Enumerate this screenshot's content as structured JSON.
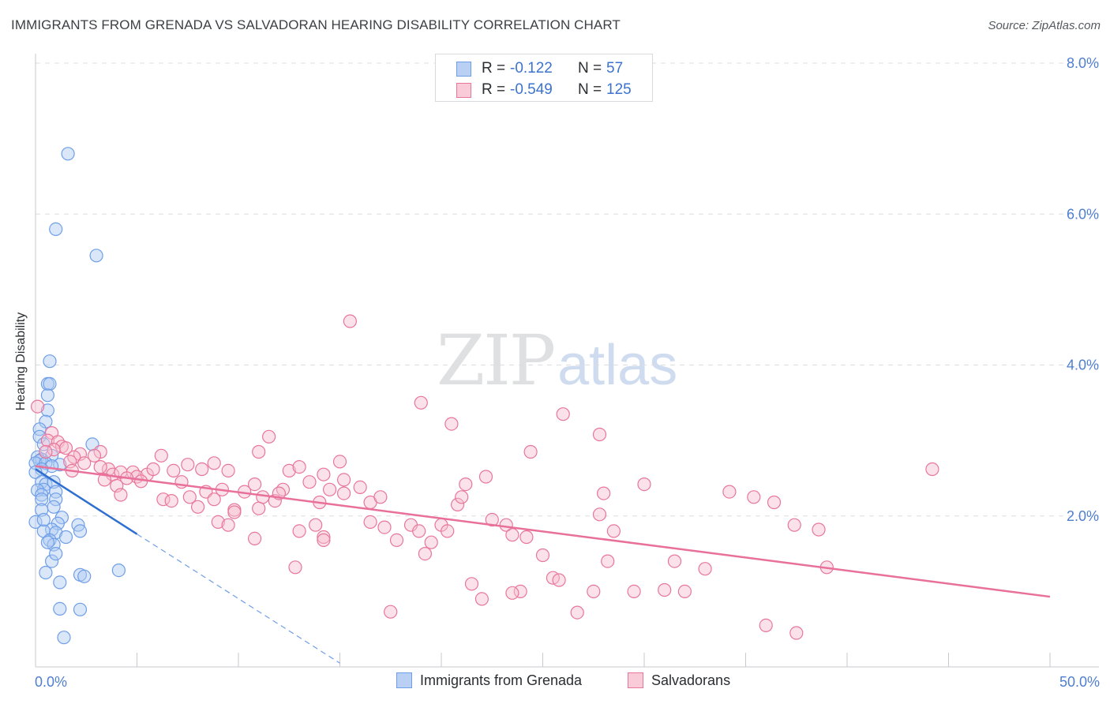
{
  "title": "IMMIGRANTS FROM GRENADA VS SALVADORAN HEARING DISABILITY CORRELATION CHART",
  "source": "Source: ZipAtlas.com",
  "watermark": {
    "zip": "ZIP",
    "atlas": "atlas"
  },
  "legend_top": {
    "r_label": "R =",
    "n_label": "N =",
    "rows": [
      {
        "name": "Immigrants from Grenada",
        "r": "-0.122",
        "n": "57"
      },
      {
        "name": "Salvadorans",
        "r": "-0.549",
        "n": "125"
      }
    ]
  },
  "legend_bottom": [
    "Immigrants from Grenada",
    "Salvadorans"
  ],
  "chart_data": {
    "type": "scatter",
    "title": "IMMIGRANTS FROM GRENADA VS SALVADORAN HEARING DISABILITY CORRELATION CHART",
    "xlabel": "",
    "ylabel": "Hearing Disability",
    "xlim": [
      0,
      50
    ],
    "ylim": [
      0,
      8
    ],
    "x_tick_labels": [
      "0.0%",
      "50.0%"
    ],
    "y_ticks": [
      2,
      4,
      6,
      8
    ],
    "y_tick_labels": [
      "2.0%",
      "4.0%",
      "6.0%",
      "8.0%"
    ],
    "grid": true,
    "legend_position": "top-center",
    "series": [
      {
        "name": "Immigrants from Grenada",
        "color": "#6f9ee8",
        "fill": "#aec9f2",
        "trend": {
          "x": [
            0.0,
            5.0
          ],
          "y": [
            2.62,
            1.76
          ]
        },
        "trend_extension": {
          "x": [
            5.0,
            15.0
          ],
          "y": [
            1.76,
            0.05
          ]
        },
        "points": [
          [
            1.6,
            6.8
          ],
          [
            1.0,
            5.8
          ],
          [
            3.0,
            5.45
          ],
          [
            0.7,
            4.05
          ],
          [
            0.6,
            3.75
          ],
          [
            0.7,
            3.75
          ],
          [
            0.6,
            3.6
          ],
          [
            0.6,
            3.4
          ],
          [
            0.5,
            3.25
          ],
          [
            0.2,
            3.15
          ],
          [
            0.2,
            3.05
          ],
          [
            2.8,
            2.95
          ],
          [
            0.4,
            2.95
          ],
          [
            0.8,
            2.8
          ],
          [
            0.1,
            2.78
          ],
          [
            0.3,
            2.75
          ],
          [
            0.2,
            2.73
          ],
          [
            0.0,
            2.7
          ],
          [
            0.5,
            2.7
          ],
          [
            1.2,
            2.68
          ],
          [
            0.8,
            2.66
          ],
          [
            0.3,
            2.62
          ],
          [
            0.0,
            2.58
          ],
          [
            0.3,
            2.45
          ],
          [
            0.5,
            2.42
          ],
          [
            0.9,
            2.45
          ],
          [
            0.4,
            2.35
          ],
          [
            0.1,
            2.34
          ],
          [
            0.3,
            2.28
          ],
          [
            1.0,
            2.32
          ],
          [
            0.3,
            2.22
          ],
          [
            1.0,
            2.22
          ],
          [
            0.9,
            2.12
          ],
          [
            0.3,
            2.08
          ],
          [
            1.3,
            1.98
          ],
          [
            1.1,
            1.9
          ],
          [
            0.0,
            1.92
          ],
          [
            2.1,
            1.88
          ],
          [
            0.8,
            1.82
          ],
          [
            0.4,
            1.8
          ],
          [
            1.0,
            1.78
          ],
          [
            2.2,
            1.8
          ],
          [
            1.5,
            1.72
          ],
          [
            0.7,
            1.68
          ],
          [
            0.9,
            1.62
          ],
          [
            0.6,
            1.65
          ],
          [
            0.8,
            1.4
          ],
          [
            4.1,
            1.28
          ],
          [
            0.5,
            1.25
          ],
          [
            2.2,
            1.22
          ],
          [
            2.4,
            1.2
          ],
          [
            1.2,
            1.12
          ],
          [
            1.2,
            0.77
          ],
          [
            2.2,
            0.76
          ],
          [
            1.4,
            0.39
          ],
          [
            1.0,
            1.5
          ],
          [
            0.4,
            1.95
          ]
        ]
      },
      {
        "name": "Salvadorans",
        "color": "#e8769a",
        "fill": "#f7bfd0",
        "trend": {
          "x": [
            0.0,
            50.0
          ],
          "y": [
            2.66,
            0.93
          ]
        },
        "points": [
          [
            0.1,
            3.45
          ],
          [
            0.8,
            3.1
          ],
          [
            0.6,
            3.0
          ],
          [
            1.1,
            2.98
          ],
          [
            1.3,
            2.92
          ],
          [
            1.5,
            2.9
          ],
          [
            0.9,
            2.88
          ],
          [
            3.2,
            2.85
          ],
          [
            2.2,
            2.82
          ],
          [
            1.9,
            2.78
          ],
          [
            2.9,
            2.8
          ],
          [
            1.7,
            2.72
          ],
          [
            2.4,
            2.7
          ],
          [
            0.5,
            2.85
          ],
          [
            1.8,
            2.6
          ],
          [
            3.6,
            2.62
          ],
          [
            3.8,
            2.55
          ],
          [
            4.2,
            2.58
          ],
          [
            4.8,
            2.58
          ],
          [
            5.0,
            2.52
          ],
          [
            5.5,
            2.55
          ],
          [
            4.5,
            2.5
          ],
          [
            5.2,
            2.46
          ],
          [
            4.0,
            2.4
          ],
          [
            3.4,
            2.48
          ],
          [
            3.2,
            2.65
          ],
          [
            5.8,
            2.62
          ],
          [
            6.2,
            2.8
          ],
          [
            6.8,
            2.6
          ],
          [
            7.2,
            2.45
          ],
          [
            7.5,
            2.68
          ],
          [
            8.2,
            2.62
          ],
          [
            8.8,
            2.7
          ],
          [
            9.5,
            2.6
          ],
          [
            4.2,
            2.28
          ],
          [
            6.3,
            2.22
          ],
          [
            6.7,
            2.2
          ],
          [
            7.6,
            2.25
          ],
          [
            8.0,
            2.12
          ],
          [
            8.4,
            2.32
          ],
          [
            8.8,
            2.22
          ],
          [
            9.2,
            2.35
          ],
          [
            9.8,
            2.08
          ],
          [
            10.3,
            2.32
          ],
          [
            10.8,
            2.42
          ],
          [
            11.2,
            2.25
          ],
          [
            11.8,
            2.2
          ],
          [
            12.2,
            2.35
          ],
          [
            12.5,
            2.6
          ],
          [
            13.0,
            2.65
          ],
          [
            13.5,
            2.45
          ],
          [
            14.2,
            2.55
          ],
          [
            14.5,
            2.35
          ],
          [
            14.0,
            2.18
          ],
          [
            15.0,
            2.72
          ],
          [
            15.2,
            2.48
          ],
          [
            16.0,
            2.38
          ],
          [
            16.5,
            2.18
          ],
          [
            17.0,
            2.25
          ],
          [
            11.0,
            2.85
          ],
          [
            11.5,
            3.05
          ],
          [
            9.0,
            1.92
          ],
          [
            9.5,
            1.88
          ],
          [
            9.8,
            2.05
          ],
          [
            11.0,
            2.1
          ],
          [
            12.0,
            2.3
          ],
          [
            13.8,
            1.88
          ],
          [
            14.2,
            1.72
          ],
          [
            13.0,
            1.8
          ],
          [
            15.2,
            2.3
          ],
          [
            16.5,
            1.92
          ],
          [
            17.2,
            1.85
          ],
          [
            17.8,
            1.68
          ],
          [
            18.5,
            1.88
          ],
          [
            18.9,
            1.8
          ],
          [
            19.2,
            1.5
          ],
          [
            19.5,
            1.65
          ],
          [
            20.0,
            1.88
          ],
          [
            20.3,
            1.8
          ],
          [
            20.8,
            2.15
          ],
          [
            21.0,
            2.25
          ],
          [
            21.2,
            2.42
          ],
          [
            20.5,
            3.22
          ],
          [
            19.0,
            3.5
          ],
          [
            22.2,
            2.52
          ],
          [
            22.5,
            1.95
          ],
          [
            23.2,
            1.88
          ],
          [
            23.5,
            1.75
          ],
          [
            24.2,
            1.72
          ],
          [
            24.4,
            2.85
          ],
          [
            25.0,
            1.48
          ],
          [
            25.5,
            1.18
          ],
          [
            26.0,
            3.35
          ],
          [
            28.0,
            2.3
          ],
          [
            27.8,
            2.02
          ],
          [
            28.5,
            1.8
          ],
          [
            30.0,
            2.42
          ],
          [
            31.5,
            1.4
          ],
          [
            33.0,
            1.3
          ],
          [
            34.2,
            2.32
          ],
          [
            35.4,
            2.25
          ],
          [
            36.4,
            2.18
          ],
          [
            37.4,
            1.88
          ],
          [
            38.6,
            1.82
          ],
          [
            44.2,
            2.62
          ],
          [
            27.8,
            3.08
          ],
          [
            28.2,
            1.4
          ],
          [
            29.5,
            1.0
          ],
          [
            27.5,
            1.0
          ],
          [
            25.8,
            1.15
          ],
          [
            23.9,
            1.0
          ],
          [
            23.5,
            0.98
          ],
          [
            21.5,
            1.1
          ],
          [
            22.0,
            0.9
          ],
          [
            26.7,
            0.72
          ],
          [
            17.5,
            0.73
          ],
          [
            15.5,
            4.58
          ],
          [
            12.8,
            1.32
          ],
          [
            14.2,
            1.68
          ],
          [
            10.8,
            1.7
          ],
          [
            36.0,
            0.55
          ],
          [
            37.5,
            0.45
          ],
          [
            39.0,
            1.32
          ],
          [
            31.0,
            1.02
          ],
          [
            32.0,
            1.0
          ]
        ]
      }
    ]
  }
}
